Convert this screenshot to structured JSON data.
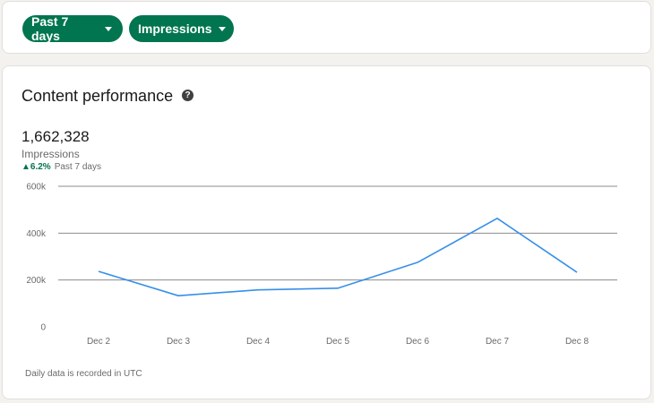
{
  "filters": {
    "range_label": "Past 7 days",
    "metric_label": "Impressions"
  },
  "performance": {
    "title": "Content performance",
    "total": "1,662,328",
    "metric": "Impressions",
    "delta": "6.2%",
    "delta_period": "Past 7 days",
    "footnote": "Daily data is recorded in UTC"
  },
  "colors": {
    "accent": "#01754f",
    "line": "#378fe9"
  },
  "chart_data": {
    "type": "line",
    "categories": [
      "Dec 2",
      "Dec 3",
      "Dec 4",
      "Dec 5",
      "Dec 6",
      "Dec 7",
      "Dec 8"
    ],
    "values": [
      237000,
      133000,
      158000,
      165000,
      275000,
      463000,
      233000
    ],
    "y_ticks": [
      {
        "value": 0,
        "label": "0"
      },
      {
        "value": 200000,
        "label": "200k"
      },
      {
        "value": 400000,
        "label": "400k"
      },
      {
        "value": 600000,
        "label": "600k"
      }
    ],
    "ylim": [
      0,
      600000
    ],
    "grid": true,
    "legend": "none"
  }
}
